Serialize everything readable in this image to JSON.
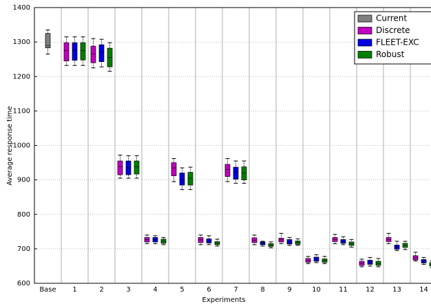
{
  "chart_data": {
    "type": "box",
    "x_label": "Experiments",
    "y_label": "Average response time",
    "categories": [
      "Base",
      "1",
      "2",
      "3",
      "4",
      "5",
      "6",
      "7",
      "8",
      "9",
      "10",
      "11",
      "12",
      "13",
      "14"
    ],
    "ylim": [
      600,
      1400
    ],
    "yticks": [
      600,
      700,
      800,
      900,
      1000,
      1100,
      1200,
      1300,
      1400
    ],
    "grid": true,
    "legend": "upper right",
    "series": [
      {
        "name": "Current",
        "color": "#7f7f7f",
        "values": [
          {
            "min": 1265,
            "q1": 1283,
            "median": 1290,
            "q3": 1325,
            "max": 1335
          },
          null,
          null,
          null,
          null,
          null,
          null,
          null,
          null,
          null,
          null,
          null,
          null,
          null,
          null
        ]
      },
      {
        "name": "Discrete",
        "color": "#c000c0",
        "values": [
          null,
          {
            "min": 1232,
            "q1": 1245,
            "median": 1275,
            "q3": 1298,
            "max": 1315
          },
          {
            "min": 1225,
            "q1": 1240,
            "median": 1265,
            "q3": 1288,
            "max": 1310
          },
          {
            "min": 905,
            "q1": 915,
            "median": 938,
            "q3": 955,
            "max": 972
          },
          {
            "min": 715,
            "q1": 720,
            "median": 727,
            "q3": 733,
            "max": 740
          },
          {
            "min": 895,
            "q1": 912,
            "median": 935,
            "q3": 950,
            "max": 962
          },
          {
            "min": 712,
            "q1": 718,
            "median": 726,
            "q3": 733,
            "max": 740
          },
          {
            "min": 895,
            "q1": 910,
            "median": 930,
            "q3": 945,
            "max": 962
          },
          {
            "min": 712,
            "q1": 718,
            "median": 725,
            "q3": 732,
            "max": 740
          },
          {
            "min": 715,
            "q1": 720,
            "median": 726,
            "q3": 731,
            "max": 745
          },
          {
            "min": 657,
            "q1": 661,
            "median": 666,
            "q3": 672,
            "max": 678
          },
          {
            "min": 715,
            "q1": 721,
            "median": 727,
            "q3": 733,
            "max": 742
          },
          {
            "min": 648,
            "q1": 652,
            "median": 658,
            "q3": 664,
            "max": 670
          },
          {
            "min": 715,
            "q1": 721,
            "median": 727,
            "q3": 733,
            "max": 745
          },
          {
            "min": 665,
            "q1": 668,
            "median": 674,
            "q3": 680,
            "max": 690
          }
        ]
      },
      {
        "name": "FLEET-EXC",
        "color": "#0000e0",
        "values": [
          null,
          {
            "min": 1232,
            "q1": 1247,
            "median": 1275,
            "q3": 1298,
            "max": 1315
          },
          {
            "min": 1228,
            "q1": 1243,
            "median": 1270,
            "q3": 1292,
            "max": 1308
          },
          {
            "min": 905,
            "q1": 915,
            "median": 935,
            "q3": 955,
            "max": 970
          },
          {
            "min": 715,
            "q1": 720,
            "median": 727,
            "q3": 733,
            "max": 738
          },
          {
            "min": 872,
            "q1": 885,
            "median": 900,
            "q3": 920,
            "max": 935
          },
          {
            "min": 712,
            "q1": 717,
            "median": 723,
            "q3": 729,
            "max": 738
          },
          {
            "min": 890,
            "q1": 902,
            "median": 922,
            "q3": 937,
            "max": 955
          },
          {
            "min": 708,
            "q1": 712,
            "median": 716,
            "q3": 720,
            "max": 722
          },
          {
            "min": 710,
            "q1": 714,
            "median": 720,
            "q3": 727,
            "max": 733
          },
          {
            "min": 660,
            "q1": 664,
            "median": 670,
            "q3": 676,
            "max": 683
          },
          {
            "min": 712,
            "q1": 716,
            "median": 721,
            "q3": 727,
            "max": 735
          },
          {
            "min": 650,
            "q1": 655,
            "median": 660,
            "q3": 667,
            "max": 675
          },
          {
            "min": 695,
            "q1": 699,
            "median": 705,
            "q3": 711,
            "max": 722
          },
          {
            "min": 655,
            "q1": 659,
            "median": 664,
            "q3": 669,
            "max": 675
          }
        ]
      },
      {
        "name": "Robust",
        "color": "#008000",
        "values": [
          null,
          {
            "min": 1232,
            "q1": 1248,
            "median": 1275,
            "q3": 1298,
            "max": 1315
          },
          {
            "min": 1215,
            "q1": 1228,
            "median": 1255,
            "q3": 1282,
            "max": 1298
          },
          {
            "min": 905,
            "q1": 917,
            "median": 938,
            "q3": 955,
            "max": 970
          },
          {
            "min": 712,
            "q1": 716,
            "median": 722,
            "q3": 728,
            "max": 733
          },
          {
            "min": 872,
            "q1": 885,
            "median": 905,
            "q3": 922,
            "max": 937
          },
          {
            "min": 708,
            "q1": 712,
            "median": 717,
            "q3": 721,
            "max": 728
          },
          {
            "min": 890,
            "q1": 900,
            "median": 920,
            "q3": 938,
            "max": 955
          },
          {
            "min": 703,
            "q1": 707,
            "median": 711,
            "q3": 715,
            "max": 720
          },
          {
            "min": 710,
            "q1": 713,
            "median": 719,
            "q3": 723,
            "max": 729
          },
          {
            "min": 657,
            "q1": 661,
            "median": 666,
            "q3": 671,
            "max": 678
          },
          {
            "min": 705,
            "q1": 710,
            "median": 714,
            "q3": 720,
            "max": 727
          },
          {
            "min": 648,
            "q1": 652,
            "median": 657,
            "q3": 664,
            "max": 672
          },
          {
            "min": 698,
            "q1": 704,
            "median": 710,
            "q3": 716,
            "max": 722
          },
          {
            "min": 645,
            "q1": 650,
            "median": 655,
            "q3": 660,
            "max": 665
          }
        ]
      }
    ]
  }
}
